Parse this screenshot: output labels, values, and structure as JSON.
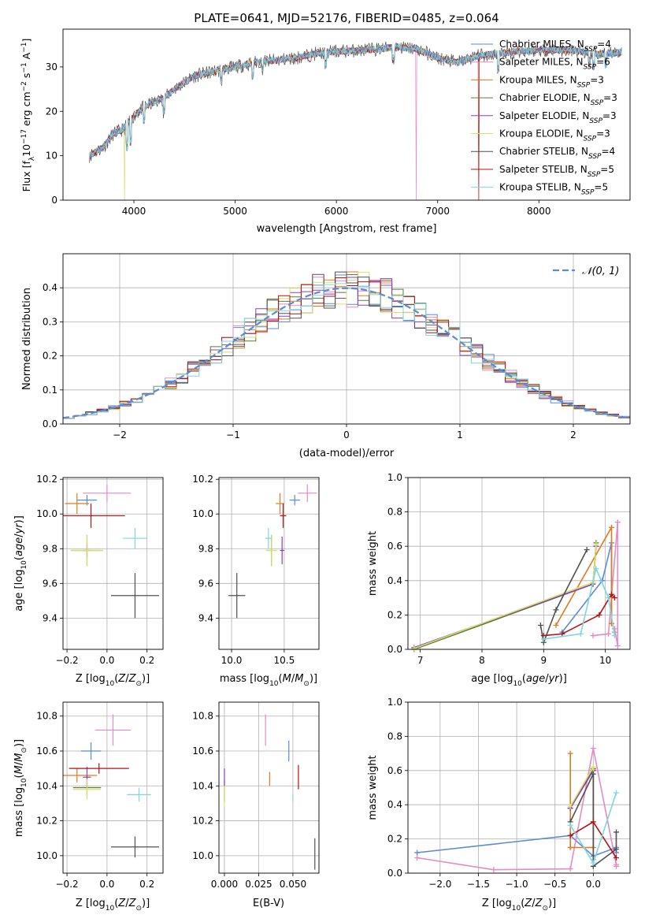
{
  "figure": {
    "title": "PLATE=0641, MJD=52176, FIBERID=0485, z=0.064"
  },
  "colors": {
    "chabrier_miles": "#5b8ad8",
    "salpeter_miles": "#e58ac2",
    "kroupa_miles": "#e07a1f",
    "chabrier_elodie": "#5d7a35",
    "salpeter_elodie": "#8a3fb8",
    "kroupa_elodie": "#d7e26a",
    "chabrier_stelib": "#505050",
    "salpeter_stelib": "#b31212",
    "kroupa_stelib": "#7dd6e0",
    "gaussian": "#5b8ad8",
    "grid": "#b0b0b0"
  },
  "chart_data": [
    {
      "id": "spectrum",
      "type": "line",
      "xlabel": "wavelength [Angstrom, rest frame]",
      "ylabel": "Flux [f_λ10^-17 erg cm^-2 s^-1 A^-1]",
      "xlim": [
        3300,
        8900
      ],
      "ylim": [
        0,
        38.5
      ],
      "xticks": [
        4000,
        5000,
        6000,
        7000,
        8000
      ],
      "yticks": [
        0,
        10,
        20,
        30
      ],
      "grid": false,
      "legend_position": "top-right",
      "continuum": {
        "x": [
          3560,
          3700,
          3800,
          3900,
          4000,
          4100,
          4200,
          4300,
          4400,
          4600,
          4800,
          5000,
          5200,
          5400,
          5600,
          5800,
          6000,
          6200,
          6400,
          6600,
          6800,
          7000,
          7200,
          7400,
          7600,
          7800,
          8000,
          8200,
          8400,
          8600,
          8800
        ],
        "y": [
          10,
          12,
          15,
          16,
          19,
          21,
          22,
          23,
          25,
          28,
          29,
          30,
          31,
          31.5,
          32,
          33,
          33.5,
          33.7,
          34,
          34.5,
          34,
          32,
          31,
          32.5,
          33,
          33.5,
          33.8,
          33.8,
          33.5,
          32.8,
          33.3
        ]
      },
      "series": [
        {
          "name": "Chabrier MILES, N_SSP=4",
          "color_key": "chabrier_miles"
        },
        {
          "name": "Salpeter MILES, N_SSP=6",
          "color_key": "salpeter_miles"
        },
        {
          "name": "Kroupa MILES, N_SSP=3",
          "color_key": "kroupa_miles"
        },
        {
          "name": "Chabrier ELODIE, N_SSP=3",
          "color_key": "chabrier_elodie"
        },
        {
          "name": "Salpeter ELODIE, N_SSP=3",
          "color_key": "salpeter_elodie"
        },
        {
          "name": "Kroupa ELODIE, N_SSP=3",
          "color_key": "kroupa_elodie"
        },
        {
          "name": "Chabrier STELIB, N_SSP=4",
          "color_key": "chabrier_stelib"
        },
        {
          "name": "Salpeter STELIB, N_SSP=5",
          "color_key": "salpeter_stelib"
        },
        {
          "name": "Kroupa STELIB, N_SSP=5",
          "color_key": "kroupa_stelib"
        }
      ],
      "drops": [
        {
          "x": 3910,
          "key": "kroupa_elodie"
        },
        {
          "x": 6790,
          "key": "salpeter_miles"
        },
        {
          "x": 7405,
          "key": "salpeter_stelib"
        }
      ]
    },
    {
      "id": "residuals",
      "type": "histogram",
      "xlabel": "(data-model)/error",
      "ylabel": "Normed distribution",
      "xlim": [
        -2.5,
        2.5
      ],
      "ylim": [
        0,
        0.5
      ],
      "xticks": [
        -2,
        -1,
        0,
        1,
        2
      ],
      "yticks": [
        0.0,
        0.1,
        0.2,
        0.3,
        0.4
      ],
      "grid": true,
      "legend_position": "top-right",
      "gaussian_label": "N(0,1)",
      "bin_width": 0.1
    },
    {
      "id": "age_vs_Z",
      "type": "scatter",
      "xlabel": "Z [log10(Z/Z⊙)]",
      "ylabel": "age [log10(age/yr)]",
      "xlim": [
        -0.22,
        0.28
      ],
      "ylim": [
        9.22,
        10.21
      ],
      "xticks": [
        -0.2,
        0.0,
        0.2
      ],
      "yticks": [
        9.4,
        9.6,
        9.8,
        10.0,
        10.2
      ],
      "grid": true,
      "points": [
        {
          "key": "chabrier_miles",
          "x": -0.1,
          "xerr": 0.05,
          "y": 10.08,
          "yerr": 0.03
        },
        {
          "key": "salpeter_miles",
          "x": 0.0,
          "xerr": 0.12,
          "y": 10.12,
          "yerr": 0.05
        },
        {
          "key": "kroupa_miles",
          "x": -0.15,
          "xerr": 0.06,
          "y": 10.06,
          "yerr": 0.06
        },
        {
          "key": "chabrier_elodie",
          "x": -0.1,
          "xerr": 0.08,
          "y": 9.79,
          "yerr": 0.09
        },
        {
          "key": "salpeter_elodie",
          "x": -0.1,
          "xerr": 0.02,
          "y": 9.79,
          "yerr": 0.04
        },
        {
          "key": "kroupa_elodie",
          "x": -0.1,
          "xerr": 0.08,
          "y": 9.79,
          "yerr": 0.09
        },
        {
          "key": "chabrier_stelib",
          "x": 0.14,
          "xerr": 0.12,
          "y": 9.53,
          "yerr": 0.13
        },
        {
          "key": "salpeter_stelib",
          "x": -0.08,
          "xerr": 0.17,
          "y": 9.99,
          "yerr": 0.07
        },
        {
          "key": "kroupa_stelib",
          "x": 0.14,
          "xerr": 0.06,
          "y": 9.86,
          "yerr": 0.06
        }
      ]
    },
    {
      "id": "age_vs_mass",
      "type": "scatter",
      "xlabel": "mass [log10(M/M⊙)]",
      "ylabel": "",
      "xlim": [
        9.88,
        10.83
      ],
      "ylim": [
        9.22,
        10.21
      ],
      "xticks": [
        10.0,
        10.5
      ],
      "yticks": [
        9.4,
        9.6,
        9.8,
        10.0,
        10.2
      ],
      "grid": true,
      "points": [
        {
          "key": "chabrier_miles",
          "x": 10.6,
          "xerr": 0.05,
          "y": 10.08,
          "yerr": 0.03
        },
        {
          "key": "salpeter_miles",
          "x": 10.72,
          "xerr": 0.09,
          "y": 10.12,
          "yerr": 0.05
        },
        {
          "key": "kroupa_miles",
          "x": 10.46,
          "xerr": 0.04,
          "y": 10.06,
          "yerr": 0.06
        },
        {
          "key": "chabrier_elodie",
          "x": 10.38,
          "xerr": 0.05,
          "y": 9.79,
          "yerr": 0.09
        },
        {
          "key": "salpeter_elodie",
          "x": 10.48,
          "xerr": 0.02,
          "y": 9.79,
          "yerr": 0.08
        },
        {
          "key": "kroupa_elodie",
          "x": 10.38,
          "xerr": 0.05,
          "y": 9.79,
          "yerr": 0.09
        },
        {
          "key": "chabrier_stelib",
          "x": 10.05,
          "xerr": 0.08,
          "y": 9.53,
          "yerr": 0.13
        },
        {
          "key": "salpeter_stelib",
          "x": 10.49,
          "xerr": 0.03,
          "y": 9.99,
          "yerr": 0.07
        },
        {
          "key": "kroupa_stelib",
          "x": 10.35,
          "xerr": 0.03,
          "y": 9.86,
          "yerr": 0.06
        }
      ]
    },
    {
      "id": "massweight_vs_age",
      "type": "line",
      "xlabel": "age [log10(age/yr)]",
      "ylabel": "mass weight",
      "xlim": [
        6.8,
        10.4
      ],
      "ylim": [
        0,
        1.0
      ],
      "xticks": [
        7,
        8,
        9,
        10
      ],
      "yticks": [
        0.0,
        0.2,
        0.4,
        0.6,
        0.8,
        1.0
      ],
      "grid": true,
      "series": [
        {
          "key": "chabrier_miles",
          "x": [
            9.3,
            9.95,
            10.1,
            10.1
          ],
          "y": [
            0.1,
            0.4,
            0.62,
            0.15
          ]
        },
        {
          "key": "salpeter_miles",
          "x": [
            9.8,
            10.05,
            10.2,
            10.2,
            10.15,
            10.15
          ],
          "y": [
            0.08,
            0.09,
            0.74,
            0.02,
            0.12,
            0.1
          ]
        },
        {
          "key": "kroupa_miles",
          "x": [
            9.2,
            10.1,
            10.1
          ],
          "y": [
            0.14,
            0.71,
            0.15
          ]
        },
        {
          "key": "chabrier_elodie",
          "x": [
            6.9,
            9.8,
            9.85
          ],
          "y": [
            0.0,
            0.38,
            0.62
          ]
        },
        {
          "key": "salpeter_elodie",
          "x": [
            6.9,
            9.8,
            9.85
          ],
          "y": [
            0.01,
            0.38,
            0.6
          ]
        },
        {
          "key": "kroupa_elodie",
          "x": [
            6.9,
            9.8,
            9.85
          ],
          "y": [
            0.005,
            0.39,
            0.61
          ]
        },
        {
          "key": "chabrier_stelib",
          "x": [
            8.95,
            9.0,
            9.2,
            9.7
          ],
          "y": [
            0.14,
            0.04,
            0.23,
            0.58
          ]
        },
        {
          "key": "salpeter_stelib",
          "x": [
            9.0,
            9.3,
            9.9,
            10.1,
            10.15
          ],
          "y": [
            0.08,
            0.09,
            0.2,
            0.32,
            0.3
          ]
        },
        {
          "key": "kroupa_stelib",
          "x": [
            9.0,
            9.6,
            9.85,
            10.05,
            10.15
          ],
          "y": [
            0.06,
            0.09,
            0.47,
            0.3,
            0.08
          ]
        }
      ]
    },
    {
      "id": "mass_vs_Z",
      "type": "scatter",
      "xlabel": "Z [log10(Z/Z⊙)]",
      "ylabel": "mass [log10(M/M⊙)]",
      "xlim": [
        -0.22,
        0.28
      ],
      "ylim": [
        9.9,
        10.88
      ],
      "xticks": [
        -0.2,
        0.0,
        0.2
      ],
      "yticks": [
        10.0,
        10.2,
        10.4,
        10.6,
        10.8
      ],
      "grid": true,
      "points": [
        {
          "key": "chabrier_miles",
          "x": -0.08,
          "xerr": 0.05,
          "y": 10.6,
          "yerr": 0.05
        },
        {
          "key": "salpeter_miles",
          "x": 0.03,
          "xerr": 0.09,
          "y": 10.72,
          "yerr": 0.09
        },
        {
          "key": "kroupa_miles",
          "x": -0.15,
          "xerr": 0.1,
          "y": 10.46,
          "yerr": 0.04
        },
        {
          "key": "chabrier_elodie",
          "x": -0.1,
          "xerr": 0.07,
          "y": 10.39,
          "yerr": 0.05
        },
        {
          "key": "salpeter_elodie",
          "x": -0.1,
          "xerr": 0.02,
          "y": 10.45,
          "yerr": 0.06
        },
        {
          "key": "kroupa_elodie",
          "x": -0.1,
          "xerr": 0.07,
          "y": 10.38,
          "yerr": 0.06
        },
        {
          "key": "chabrier_stelib",
          "x": 0.14,
          "xerr": 0.12,
          "y": 10.05,
          "yerr": 0.06
        },
        {
          "key": "salpeter_stelib",
          "x": -0.04,
          "xerr": 0.15,
          "y": 10.5,
          "yerr": 0.03
        },
        {
          "key": "kroupa_stelib",
          "x": 0.16,
          "xerr": 0.06,
          "y": 10.35,
          "yerr": 0.04
        }
      ]
    },
    {
      "id": "mass_vs_EBV",
      "type": "scatter",
      "xlabel": "E(B-V)",
      "ylabel": "",
      "xlim": [
        -0.004,
        0.069
      ],
      "ylim": [
        9.9,
        10.88
      ],
      "xticks": [
        0.0,
        0.025,
        0.05
      ],
      "tick_labels": [
        "0.000",
        "0.025",
        "0.050"
      ],
      "yticks": [
        10.0,
        10.2,
        10.4,
        10.6,
        10.8
      ],
      "grid": true,
      "points": [
        {
          "key": "chabrier_miles",
          "x": 0.047,
          "y": 10.6,
          "yerr": 0.06
        },
        {
          "key": "salpeter_miles",
          "x": 0.03,
          "y": 10.72,
          "yerr": 0.09
        },
        {
          "key": "kroupa_miles",
          "x": 0.033,
          "y": 10.44,
          "yerr": 0.04
        },
        {
          "key": "chabrier_elodie",
          "x": 0.0,
          "y": 10.37,
          "yerr": 0.06
        },
        {
          "key": "salpeter_elodie",
          "x": 0.0,
          "y": 10.45,
          "yerr": 0.05
        },
        {
          "key": "kroupa_elodie",
          "x": 0.0,
          "y": 10.34,
          "yerr": 0.06
        },
        {
          "key": "chabrier_stelib",
          "x": 0.066,
          "y": 10.01,
          "yerr": 0.09
        },
        {
          "key": "salpeter_stelib",
          "x": 0.054,
          "y": 10.45,
          "yerr": 0.07
        },
        {
          "key": "kroupa_stelib",
          "x": 0.05,
          "y": 10.33,
          "yerr": 0.02
        }
      ]
    },
    {
      "id": "massweight_vs_Z",
      "type": "line",
      "xlabel": "Z [log10(Z/Z⊙)]",
      "ylabel": "mass weight",
      "xlim": [
        -2.42,
        0.48
      ],
      "ylim": [
        0,
        1.0
      ],
      "xticks": [
        -2.0,
        -1.5,
        -1.0,
        -0.5,
        0.0
      ],
      "yticks": [
        0.0,
        0.2,
        0.4,
        0.6,
        0.8,
        1.0
      ],
      "grid": true,
      "series": [
        {
          "key": "chabrier_miles",
          "x": [
            -2.3,
            -0.3,
            0.0,
            0.3,
            0.3
          ],
          "y": [
            0.12,
            0.22,
            0.1,
            0.15,
            0.12
          ]
        },
        {
          "key": "salpeter_miles",
          "x": [
            -2.3,
            -1.3,
            -0.3,
            0.0,
            0.3,
            0.3
          ],
          "y": [
            0.09,
            0.02,
            0.025,
            0.73,
            0.05,
            0.04
          ]
        },
        {
          "key": "kroupa_miles",
          "x": [
            -0.3,
            -0.3,
            0.0,
            0.0
          ],
          "y": [
            0.7,
            0.15,
            0.15,
            0.6
          ]
        },
        {
          "key": "chabrier_elodie",
          "x": [
            -0.3,
            0.0,
            0.0
          ],
          "y": [
            0.38,
            0.61,
            0.08
          ]
        },
        {
          "key": "salpeter_elodie",
          "x": [
            -0.3,
            0.0,
            0.0
          ],
          "y": [
            0.38,
            0.6,
            0.08
          ]
        },
        {
          "key": "kroupa_elodie",
          "x": [
            -0.3,
            0.0,
            0.0
          ],
          "y": [
            0.39,
            0.62,
            0.08
          ]
        },
        {
          "key": "chabrier_stelib",
          "x": [
            -0.3,
            0.0,
            0.0,
            0.3,
            0.3
          ],
          "y": [
            0.3,
            0.58,
            0.04,
            0.14,
            0.24
          ]
        },
        {
          "key": "salpeter_stelib",
          "x": [
            -0.3,
            0.0,
            0.3
          ],
          "y": [
            0.22,
            0.3,
            0.09
          ]
        },
        {
          "key": "kroupa_stelib",
          "x": [
            -0.3,
            0.0,
            0.3
          ],
          "y": [
            0.28,
            0.06,
            0.47
          ]
        }
      ]
    }
  ]
}
